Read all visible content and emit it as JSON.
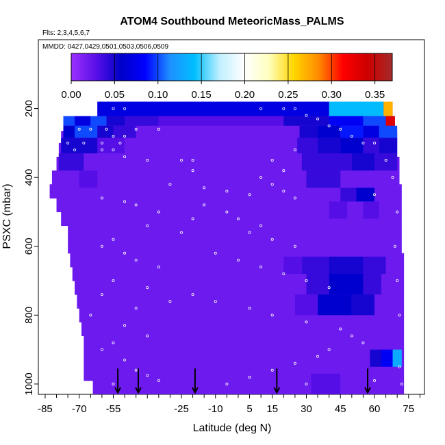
{
  "chart_data": {
    "type": "heatmap",
    "title": "ATOM4 Southbound MeteoricMass_PALMS",
    "subtitle_flights": "Flts: 2,3,4,5,6,7",
    "subtitle_dates": "MMDD: 0427,0429,0501,0503,0506,0509",
    "xlabel": "Latitude (deg N)",
    "ylabel": "PSXC (mbar)",
    "xlim": [
      -88,
      82
    ],
    "ylim": [
      1030,
      0
    ],
    "x_ticks": [
      -85,
      -70,
      -55,
      -40,
      -25,
      -10,
      5,
      15,
      30,
      45,
      60,
      75
    ],
    "x_tick_labels": [
      "-85",
      "-70",
      "-55",
      "",
      "-25",
      "-10",
      "5",
      "15",
      "30",
      "45",
      "60",
      "75"
    ],
    "x_minor_ticks": [
      -80,
      -75,
      -65,
      -60,
      -50,
      -45,
      -35,
      -30,
      -20,
      -15,
      -5,
      0,
      10,
      20,
      25,
      35,
      40,
      50,
      55,
      65,
      70,
      80
    ],
    "y_ticks": [
      200,
      400,
      600,
      800,
      1000
    ],
    "y_tick_labels": [
      "200",
      "400",
      "600",
      "800",
      "1000"
    ],
    "colorbar": {
      "ticks": [
        0.0,
        0.05,
        0.1,
        0.15,
        0.2,
        0.25,
        0.3,
        0.35
      ],
      "tick_labels": [
        "0.00",
        "0.05",
        "0.10",
        "0.15",
        "0.20",
        "0.25",
        "0.30",
        "0.35"
      ],
      "range": [
        0.0,
        0.37
      ],
      "colors": [
        "#9b30ff",
        "#5a10e8",
        "#0000c8",
        "#0000ff",
        "#1e90ff",
        "#00bfff",
        "#bfefff",
        "#ffffff",
        "#ffffbf",
        "#ffd700",
        "#ff8c00",
        "#ff0000",
        "#cd0000",
        "#a52a2a"
      ]
    },
    "background_value": 0.02,
    "coverage": [
      [
        180,
        -62,
        68
      ],
      [
        222,
        -77,
        69
      ],
      [
        265,
        -78,
        70
      ],
      [
        300,
        -79,
        70
      ],
      [
        340,
        -80,
        71
      ],
      [
        380,
        -82,
        71
      ],
      [
        420,
        -83,
        72
      ],
      [
        460,
        -80,
        72
      ],
      [
        500,
        -78,
        72
      ],
      [
        540,
        -75,
        72
      ],
      [
        580,
        -75,
        72
      ],
      [
        620,
        -74,
        73
      ],
      [
        660,
        -73,
        73
      ],
      [
        700,
        -72,
        73
      ],
      [
        740,
        -71,
        73
      ],
      [
        780,
        -70,
        73
      ],
      [
        820,
        -69,
        73
      ],
      [
        860,
        -68,
        73
      ],
      [
        900,
        -68,
        73
      ],
      [
        940,
        -68,
        73
      ],
      [
        990,
        -64,
        73
      ],
      [
        1030,
        -64,
        73
      ]
    ],
    "cells": [
      [
        -62,
        40,
        180,
        222,
        0.07
      ],
      [
        40,
        64,
        180,
        222,
        0.14
      ],
      [
        64,
        68,
        180,
        222,
        0.27
      ],
      [
        -77,
        -72,
        222,
        250,
        0.1
      ],
      [
        -72,
        -65,
        222,
        250,
        0.07
      ],
      [
        -65,
        -58,
        222,
        250,
        0.1
      ],
      [
        -58,
        -50,
        222,
        250,
        0.05
      ],
      [
        -50,
        -35,
        222,
        250,
        0.04
      ],
      [
        -35,
        20,
        222,
        250,
        0.03
      ],
      [
        20,
        40,
        222,
        250,
        0.05
      ],
      [
        40,
        55,
        222,
        250,
        0.08
      ],
      [
        55,
        65,
        222,
        250,
        0.1
      ],
      [
        65,
        69,
        222,
        250,
        0.33
      ],
      [
        -77,
        -72,
        250,
        285,
        0.06
      ],
      [
        -72,
        -62,
        250,
        285,
        0.1
      ],
      [
        -62,
        -55,
        250,
        285,
        0.05
      ],
      [
        -55,
        -45,
        250,
        285,
        0.04
      ],
      [
        27,
        35,
        250,
        285,
        0.05
      ],
      [
        35,
        45,
        250,
        285,
        0.06
      ],
      [
        45,
        55,
        250,
        285,
        0.09
      ],
      [
        55,
        62,
        250,
        285,
        0.07
      ],
      [
        62,
        70,
        250,
        285,
        0.1
      ],
      [
        -78,
        -62,
        285,
        330,
        0.05
      ],
      [
        -62,
        -50,
        285,
        330,
        0.03
      ],
      [
        26,
        35,
        285,
        330,
        0.04
      ],
      [
        35,
        45,
        285,
        330,
        0.05
      ],
      [
        45,
        55,
        285,
        330,
        0.06
      ],
      [
        55,
        62,
        285,
        330,
        0.04
      ],
      [
        62,
        70,
        285,
        330,
        0.05
      ],
      [
        -79,
        -68,
        330,
        380,
        0.04
      ],
      [
        28,
        50,
        330,
        380,
        0.04
      ],
      [
        50,
        60,
        330,
        380,
        0.05
      ],
      [
        60,
        70,
        330,
        380,
        0.04
      ],
      [
        -70,
        -62,
        380,
        430,
        0.03
      ],
      [
        30,
        45,
        380,
        430,
        0.04
      ],
      [
        52,
        60,
        430,
        470,
        0.06
      ],
      [
        45,
        52,
        430,
        470,
        0.04
      ],
      [
        40,
        48,
        470,
        520,
        0.03
      ],
      [
        55,
        62,
        470,
        520,
        0.03
      ],
      [
        28,
        40,
        630,
        680,
        0.04
      ],
      [
        40,
        55,
        630,
        680,
        0.05
      ],
      [
        55,
        65,
        630,
        680,
        0.04
      ],
      [
        20,
        28,
        630,
        680,
        0.03
      ],
      [
        30,
        40,
        680,
        740,
        0.04
      ],
      [
        40,
        55,
        680,
        740,
        0.06
      ],
      [
        55,
        63,
        680,
        740,
        0.04
      ],
      [
        25,
        35,
        740,
        800,
        0.03
      ],
      [
        35,
        50,
        740,
        800,
        0.06
      ],
      [
        50,
        60,
        740,
        800,
        0.05
      ],
      [
        58,
        63,
        900,
        950,
        0.05
      ],
      [
        63,
        68,
        900,
        950,
        0.08
      ],
      [
        68,
        72,
        900,
        950,
        0.13
      ],
      [
        32,
        45,
        970,
        1030,
        0.03
      ]
    ],
    "markers": [
      [
        200,
        -80
      ],
      [
        200,
        -65
      ],
      [
        200,
        -55
      ],
      [
        200,
        -50
      ],
      [
        260,
        -82
      ],
      [
        260,
        -70
      ],
      [
        260,
        -65
      ],
      [
        260,
        -58
      ],
      [
        260,
        -45
      ],
      [
        260,
        -35
      ],
      [
        280,
        -55
      ],
      [
        280,
        -50
      ],
      [
        300,
        -75
      ],
      [
        300,
        -68
      ],
      [
        300,
        -60
      ],
      [
        300,
        -52
      ],
      [
        320,
        -72
      ],
      [
        320,
        -60
      ],
      [
        320,
        -55
      ],
      [
        340,
        -50
      ],
      [
        350,
        -40
      ],
      [
        350,
        -25
      ],
      [
        350,
        -20
      ],
      [
        380,
        -20
      ],
      [
        420,
        -30
      ],
      [
        430,
        -15
      ],
      [
        440,
        -5
      ],
      [
        450,
        5
      ],
      [
        460,
        -60
      ],
      [
        470,
        -50
      ],
      [
        480,
        -45
      ],
      [
        500,
        -35
      ],
      [
        520,
        -20
      ],
      [
        540,
        -40
      ],
      [
        560,
        -25
      ],
      [
        580,
        -55
      ],
      [
        600,
        -60
      ],
      [
        620,
        -50
      ],
      [
        640,
        -45
      ],
      [
        660,
        -35
      ],
      [
        700,
        -55
      ],
      [
        720,
        -40
      ],
      [
        740,
        -60
      ],
      [
        760,
        -30
      ],
      [
        780,
        -45
      ],
      [
        800,
        -65
      ],
      [
        830,
        -50
      ],
      [
        860,
        -40
      ],
      [
        880,
        -55
      ],
      [
        900,
        -60
      ],
      [
        930,
        -50
      ],
      [
        960,
        -45
      ],
      [
        975,
        -40
      ],
      [
        990,
        -35
      ],
      [
        1000,
        -55
      ],
      [
        200,
        10
      ],
      [
        200,
        20
      ],
      [
        200,
        25
      ],
      [
        220,
        30
      ],
      [
        230,
        35
      ],
      [
        250,
        40
      ],
      [
        260,
        45
      ],
      [
        280,
        50
      ],
      [
        300,
        55
      ],
      [
        320,
        25
      ],
      [
        350,
        15
      ],
      [
        380,
        20
      ],
      [
        400,
        10
      ],
      [
        420,
        15
      ],
      [
        440,
        20
      ],
      [
        460,
        25
      ],
      [
        480,
        -15
      ],
      [
        500,
        -5
      ],
      [
        520,
        0
      ],
      [
        540,
        10
      ],
      [
        560,
        5
      ],
      [
        580,
        15
      ],
      [
        600,
        25
      ],
      [
        620,
        -10
      ],
      [
        640,
        0
      ],
      [
        660,
        10
      ],
      [
        680,
        20
      ],
      [
        700,
        30
      ],
      [
        720,
        40
      ],
      [
        740,
        -20
      ],
      [
        760,
        -10
      ],
      [
        780,
        5
      ],
      [
        800,
        15
      ],
      [
        820,
        30
      ],
      [
        840,
        45
      ],
      [
        860,
        50
      ],
      [
        880,
        55
      ],
      [
        900,
        40
      ],
      [
        920,
        35
      ],
      [
        940,
        25
      ],
      [
        960,
        15
      ],
      [
        980,
        5
      ],
      [
        1000,
        -5
      ],
      [
        1000,
        30
      ],
      [
        990,
        60
      ],
      [
        300,
        60
      ],
      [
        350,
        65
      ],
      [
        400,
        68
      ],
      [
        500,
        70
      ],
      [
        600,
        69
      ],
      [
        700,
        70
      ],
      [
        800,
        71
      ],
      [
        950,
        71
      ],
      [
        1000,
        72
      ],
      [
        450,
        60
      ]
    ],
    "arrows": [
      -53,
      -44,
      -19,
      17,
      57
    ]
  }
}
